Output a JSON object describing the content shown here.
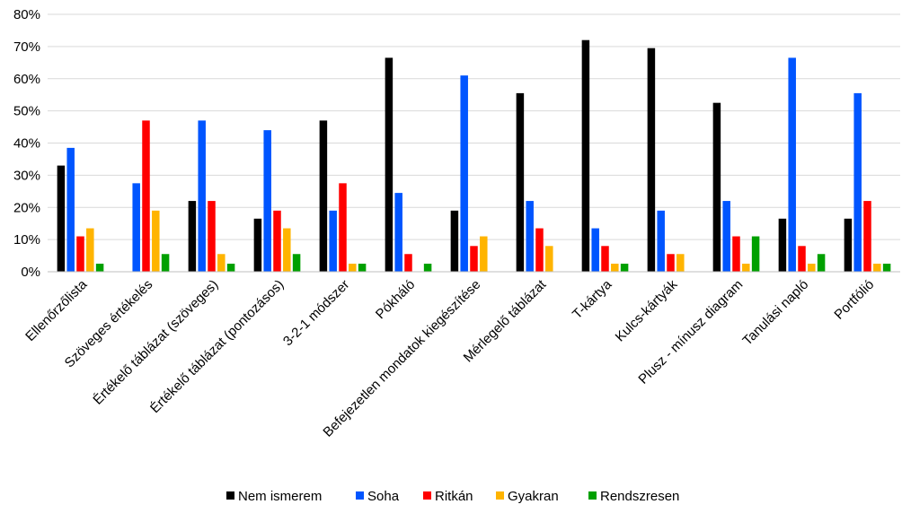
{
  "chart_data": {
    "type": "bar",
    "categories": [
      "Ellenőrzőlista",
      "Szöveges értékelés",
      "Értékelő táblázat (szöveges)",
      "Értékelő táblázat (pontozásos)",
      "3-2-1 módszer",
      "Pókháló",
      "Befejezetlen mondatok kiegészítése",
      "Mérlegelő táblázat",
      "T-kártya",
      "Kulcs-kártyák",
      "Plusz - mínusz diagram",
      "Tanulási napló",
      "Portfólió"
    ],
    "series": [
      {
        "name": "Nem ismerem",
        "color": "#000000",
        "values": [
          33,
          0,
          22,
          16.5,
          47,
          66.5,
          19,
          55.5,
          72,
          69.5,
          52.5,
          16.5,
          16.5
        ]
      },
      {
        "name": "Soha",
        "color": "#0055ff",
        "values": [
          38.5,
          27.5,
          47,
          44,
          19,
          24.5,
          61,
          22,
          13.5,
          19,
          22,
          66.5,
          55.5
        ]
      },
      {
        "name": "Ritkán",
        "color": "#ff0000",
        "values": [
          11,
          47,
          22,
          19,
          27.5,
          5.5,
          8,
          13.5,
          8,
          5.5,
          11,
          8,
          22
        ]
      },
      {
        "name": "Gyakran",
        "color": "#ffb400",
        "values": [
          13.5,
          19,
          5.5,
          13.5,
          2.5,
          0,
          11,
          8,
          2.5,
          5.5,
          2.5,
          2.5,
          2.5
        ]
      },
      {
        "name": "Rendszresen",
        "color": "#00a000",
        "values": [
          2.5,
          5.5,
          2.5,
          5.5,
          2.5,
          2.5,
          0,
          0,
          2.5,
          0,
          11,
          5.5,
          2.5
        ]
      }
    ],
    "y_ticks": [
      "0%",
      "10%",
      "20%",
      "30%",
      "40%",
      "50%",
      "60%",
      "70%",
      "80%"
    ],
    "ylim": [
      0,
      80
    ],
    "grid": true,
    "legend_position": "bottom"
  }
}
